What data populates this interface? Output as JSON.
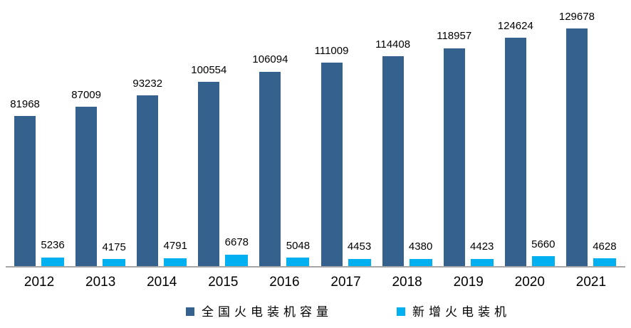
{
  "chart_data": {
    "type": "bar",
    "title": "",
    "categories": [
      "2012",
      "2013",
      "2014",
      "2015",
      "2016",
      "2017",
      "2018",
      "2019",
      "2020",
      "2021"
    ],
    "series": [
      {
        "name": "全国火电装机容量",
        "color": "#35618F",
        "values": [
          81968,
          87009,
          93232,
          100554,
          106094,
          111009,
          114408,
          118957,
          124624,
          129678
        ]
      },
      {
        "name": "新增火电装机",
        "color": "#00B0F0",
        "values": [
          5236,
          4175,
          4791,
          6678,
          5048,
          4453,
          4380,
          4423,
          5660,
          4628
        ]
      }
    ],
    "xlabel": "",
    "ylabel": "",
    "ylim": [
      0,
      133500
    ],
    "grid": false,
    "value_labels": true,
    "legend_position": "bottom"
  },
  "colors": {
    "background": "#FFFFFF",
    "axis_line": "#A6A6A6",
    "label_text": "#000000"
  }
}
